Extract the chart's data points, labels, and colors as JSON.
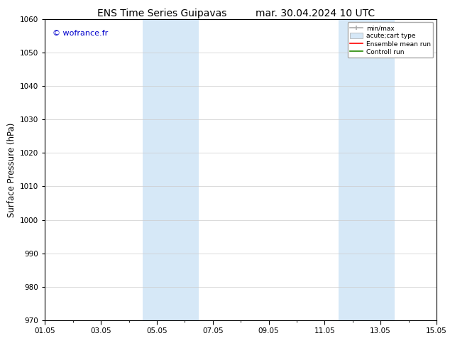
{
  "title_left": "ENS Time Series Guipavas",
  "title_right": "mar. 30.04.2024 10 UTC",
  "ylabel": "Surface Pressure (hPa)",
  "ylim": [
    970,
    1060
  ],
  "yticks": [
    970,
    980,
    990,
    1000,
    1010,
    1020,
    1030,
    1040,
    1050,
    1060
  ],
  "xstart_day": 0,
  "xend_day": 14,
  "xtick_labels": [
    "01.05",
    "03.05",
    "05.05",
    "07.05",
    "09.05",
    "11.05",
    "13.05",
    "15.05"
  ],
  "xtick_positions_days": [
    0,
    2,
    4,
    6,
    8,
    10,
    12,
    14
  ],
  "shaded_regions": [
    {
      "start_day": 3.5,
      "end_day": 5.5
    },
    {
      "start_day": 10.5,
      "end_day": 12.5
    }
  ],
  "shaded_color": "#d6e8f7",
  "watermark_text": "© wofrance.fr",
  "watermark_color": "#0000cc",
  "legend_entries": [
    {
      "label": "min/max",
      "color": "#aaaaaa"
    },
    {
      "label": "acute;cart type",
      "color": "#d6e8f7"
    },
    {
      "label": "Ensemble mean run",
      "color": "#ff0000"
    },
    {
      "label": "Controll run",
      "color": "#228800"
    }
  ],
  "bg_color": "#ffffff",
  "grid_color": "#cccccc",
  "title_fontsize": 10,
  "tick_fontsize": 7.5,
  "label_fontsize": 8.5,
  "watermark_fontsize": 8,
  "legend_fontsize": 6.5
}
